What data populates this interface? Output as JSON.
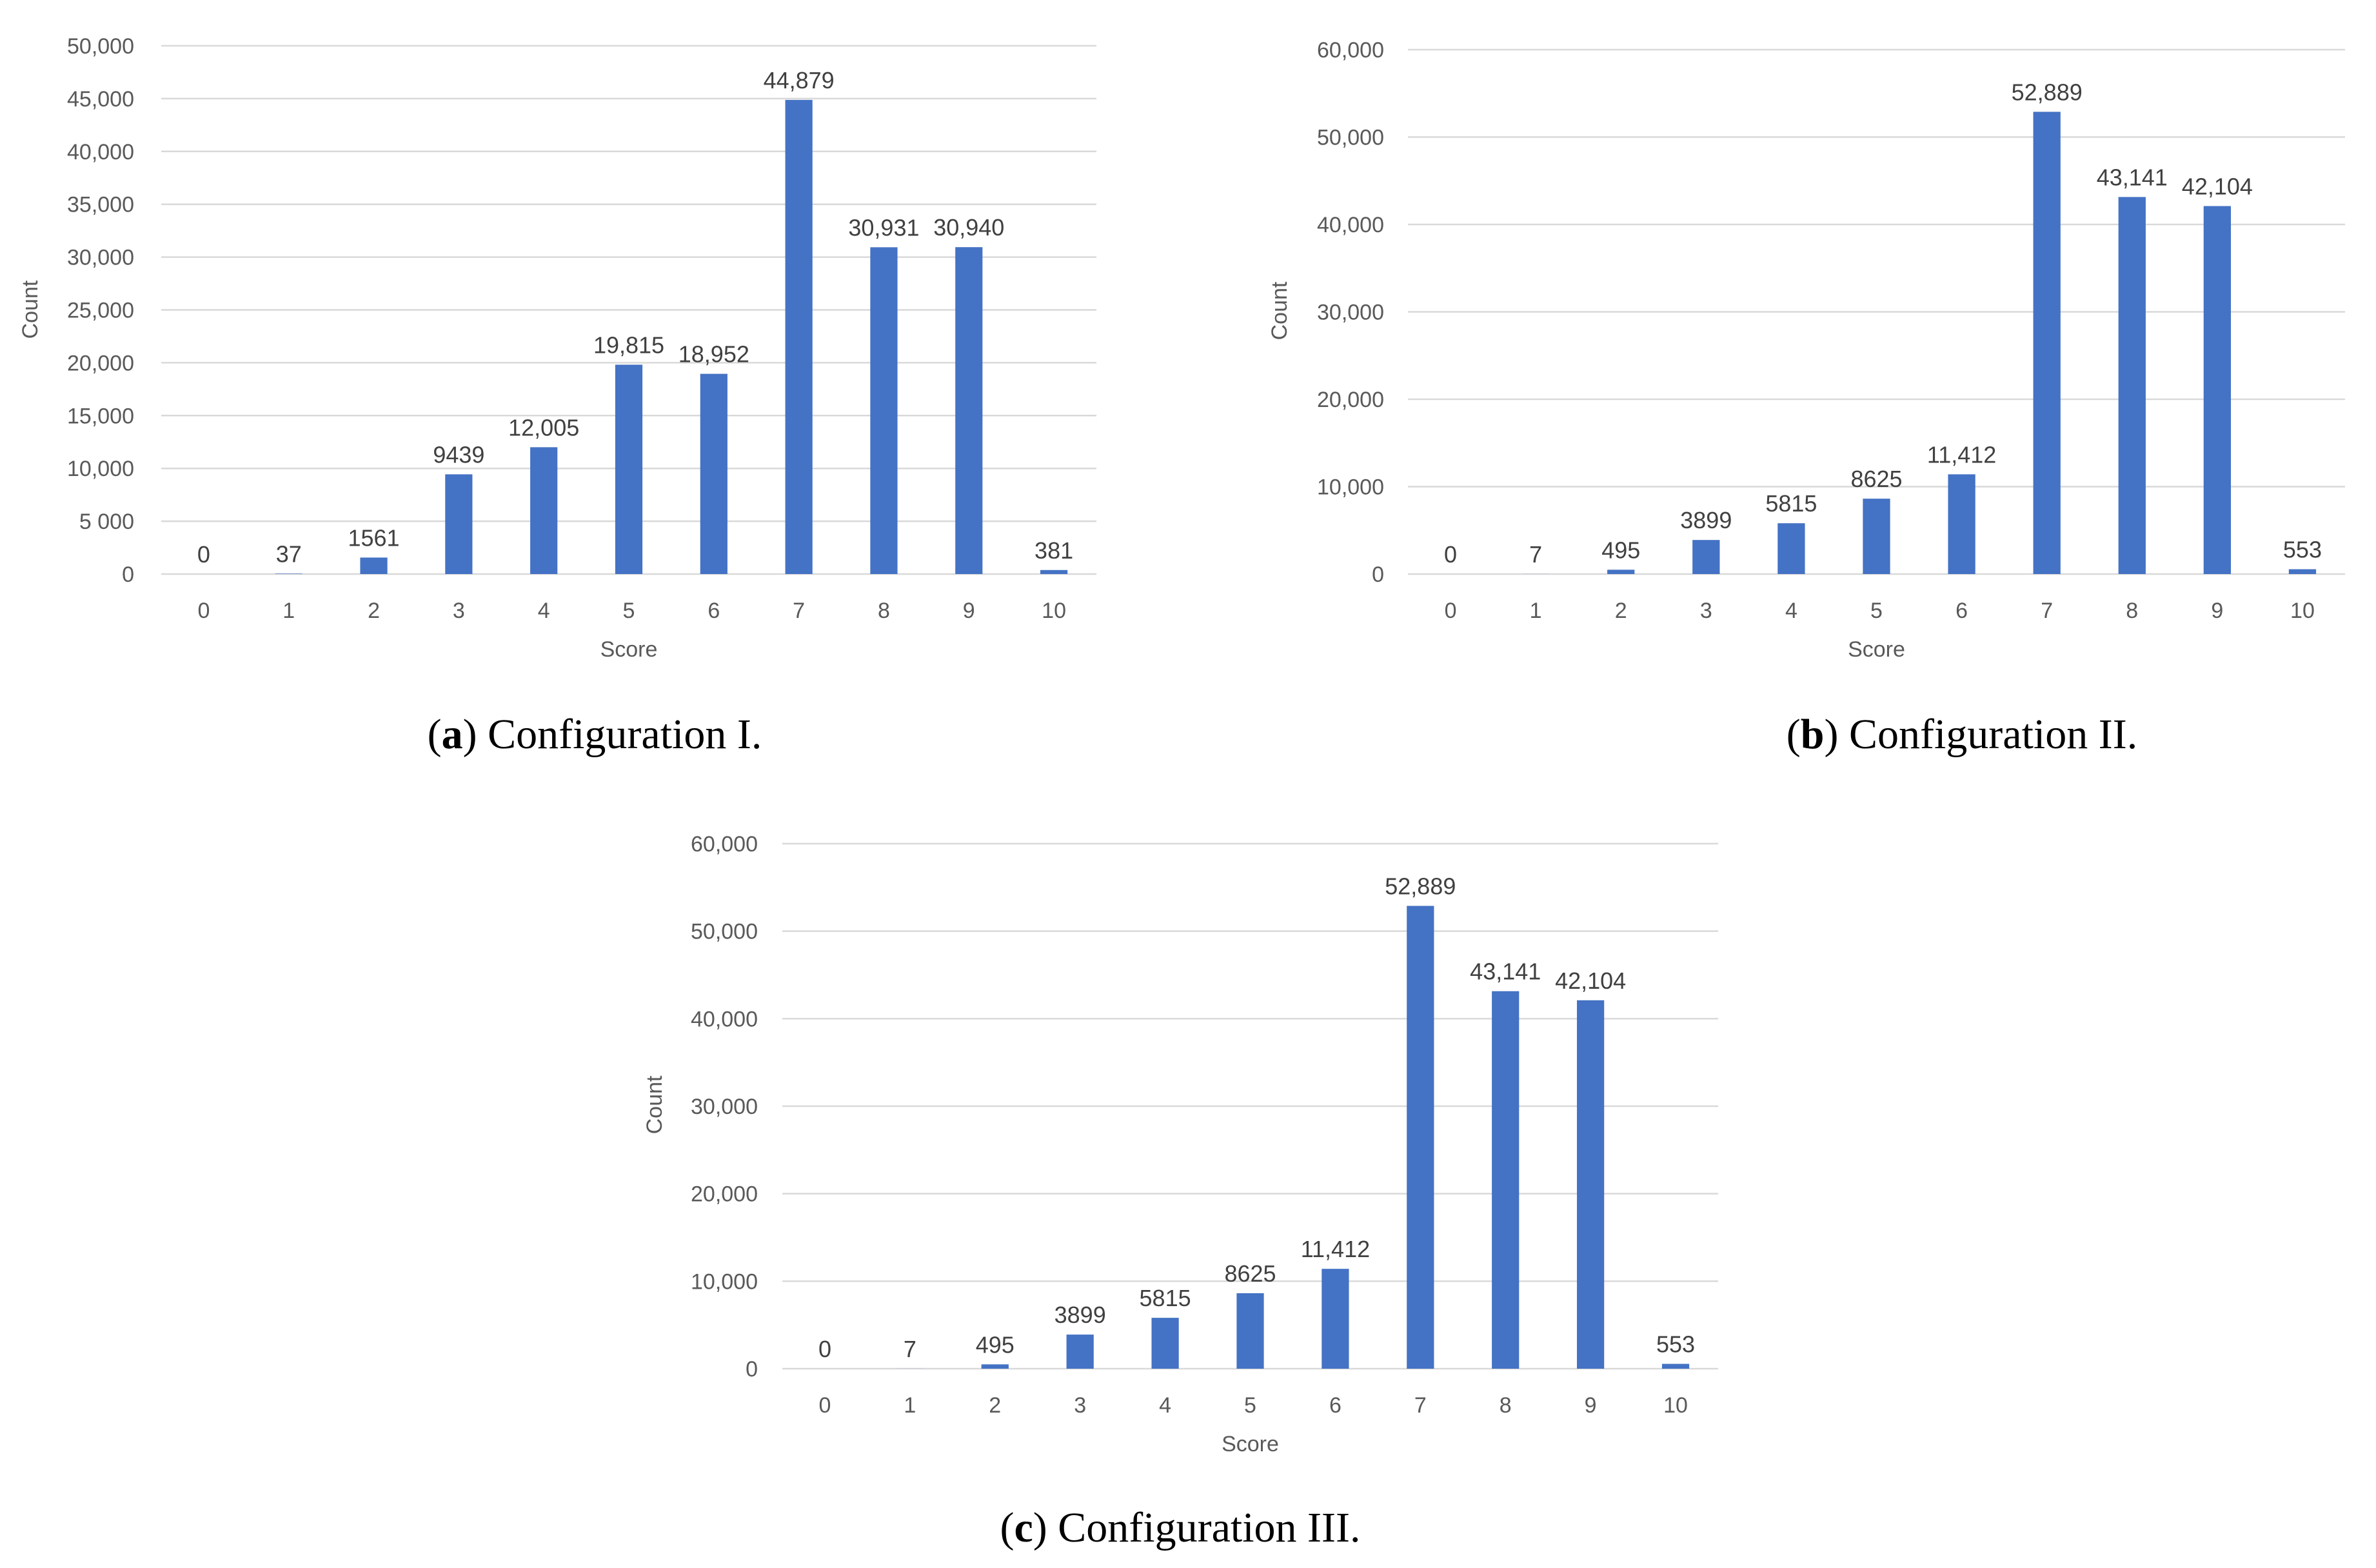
{
  "chart_data": [
    {
      "id": "a",
      "type": "bar",
      "categories": [
        "0",
        "1",
        "2",
        "3",
        "4",
        "5",
        "6",
        "7",
        "8",
        "9",
        "10"
      ],
      "values": [
        0,
        37,
        1561,
        9439,
        12005,
        19815,
        18952,
        44879,
        30931,
        30940,
        381
      ],
      "value_labels": [
        "0",
        "37",
        "1561",
        "9439",
        "12,005",
        "19,815",
        "18,952",
        "44,879",
        "30,931",
        "30,940",
        "381"
      ],
      "yticks": [
        0,
        5000,
        10000,
        15000,
        20000,
        25000,
        30000,
        35000,
        40000,
        45000,
        50000
      ],
      "ytick_labels": [
        "0",
        "5 000",
        "10,000",
        "15,000",
        "20,000",
        "25,000",
        "30,000",
        "35,000",
        "40,000",
        "45,000",
        "50,000"
      ],
      "ylim": [
        0,
        50000
      ],
      "xlabel": "Score",
      "ylabel": "Count",
      "caption_letter": "(a)",
      "caption_text": "Configuration I.",
      "grid": true,
      "color": "#4472c4"
    },
    {
      "id": "b",
      "type": "bar",
      "categories": [
        "0",
        "1",
        "2",
        "3",
        "4",
        "5",
        "6",
        "7",
        "8",
        "9",
        "10"
      ],
      "values": [
        0,
        7,
        495,
        3899,
        5815,
        8625,
        11412,
        52889,
        43141,
        42104,
        553
      ],
      "value_labels": [
        "0",
        "7",
        "495",
        "3899",
        "5815",
        "8625",
        "11,412",
        "52,889",
        "43,141",
        "42,104",
        "553"
      ],
      "yticks": [
        0,
        10000,
        20000,
        30000,
        40000,
        50000,
        60000
      ],
      "ytick_labels": [
        "0",
        "10,000",
        "20,000",
        "30,000",
        "40,000",
        "50,000",
        "60,000"
      ],
      "ylim": [
        0,
        60000
      ],
      "xlabel": "Score",
      "ylabel": "Count",
      "caption_letter": "(b)",
      "caption_text": "Configuration II.",
      "grid": true,
      "color": "#4472c4"
    },
    {
      "id": "c",
      "type": "bar",
      "categories": [
        "0",
        "1",
        "2",
        "3",
        "4",
        "5",
        "6",
        "7",
        "8",
        "9",
        "10"
      ],
      "values": [
        0,
        7,
        495,
        3899,
        5815,
        8625,
        11412,
        52889,
        43141,
        42104,
        553
      ],
      "value_labels": [
        "0",
        "7",
        "495",
        "3899",
        "5815",
        "8625",
        "11,412",
        "52,889",
        "43,141",
        "42,104",
        "553"
      ],
      "yticks": [
        0,
        10000,
        20000,
        30000,
        40000,
        50000,
        60000
      ],
      "ytick_labels": [
        "0",
        "10,000",
        "20,000",
        "30,000",
        "40,000",
        "50,000",
        "60,000"
      ],
      "ylim": [
        0,
        60000
      ],
      "xlabel": "Score",
      "ylabel": "Count",
      "caption_letter": "(c)",
      "caption_text": "Configuration III.",
      "grid": true,
      "color": "#4472c4"
    }
  ]
}
